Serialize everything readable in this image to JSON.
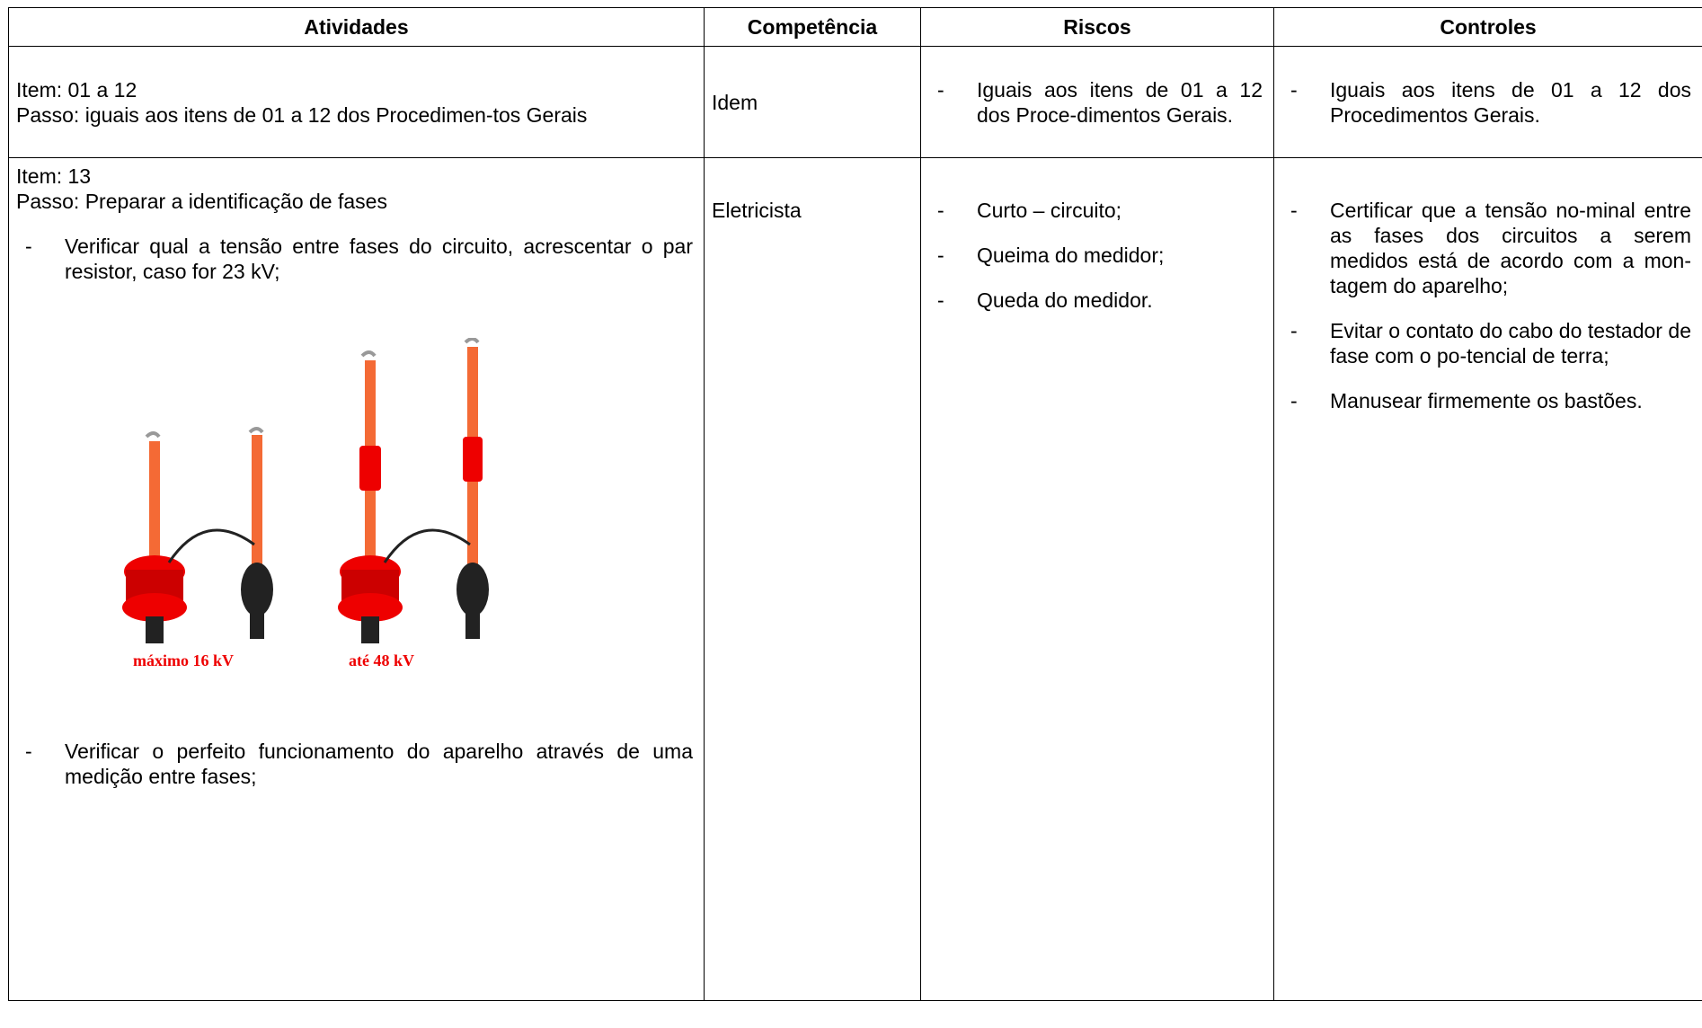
{
  "table": {
    "header": [
      "Atividades",
      "Competência",
      "Riscos",
      "Controles"
    ],
    "rows": [
      {
        "atividades": {
          "item": "Item: 01 a 12",
          "passo": "Passo: iguais aos itens de 01 a 12 dos Procedimen-tos Gerais",
          "bullets": []
        },
        "competencia": "Idem",
        "riscos": [
          "Iguais aos itens de 01 a 12 dos Proce-dimentos Gerais."
        ],
        "controles": [
          "Iguais aos itens de 01 a 12 dos Procedimentos Gerais."
        ]
      },
      {
        "atividades": {
          "item": "Item: 13",
          "passo": "Passo: Preparar a identificação de fases",
          "bullets": [
            "Verificar qual a tensão entre fases do circuito, acrescentar o par resistor, caso for 23 kV;",
            "Verificar o perfeito funcionamento do aparelho através de uma medição entre fases;"
          ],
          "captions": [
            "máximo 16 kV",
            "até 48 kV"
          ]
        },
        "competencia": "Eletricista",
        "riscos": [
          "Curto – circuito;",
          "Queima do medidor;",
          "Queda do medidor."
        ],
        "controles": [
          "Certificar que a tensão no-minal entre as fases dos circuitos a serem medidos está de acordo com a mon-tagem do aparelho;",
          "Evitar o contato do cabo do testador de fase com o po-tencial de terra;",
          "Manusear firmemente os bastões."
        ]
      }
    ]
  }
}
